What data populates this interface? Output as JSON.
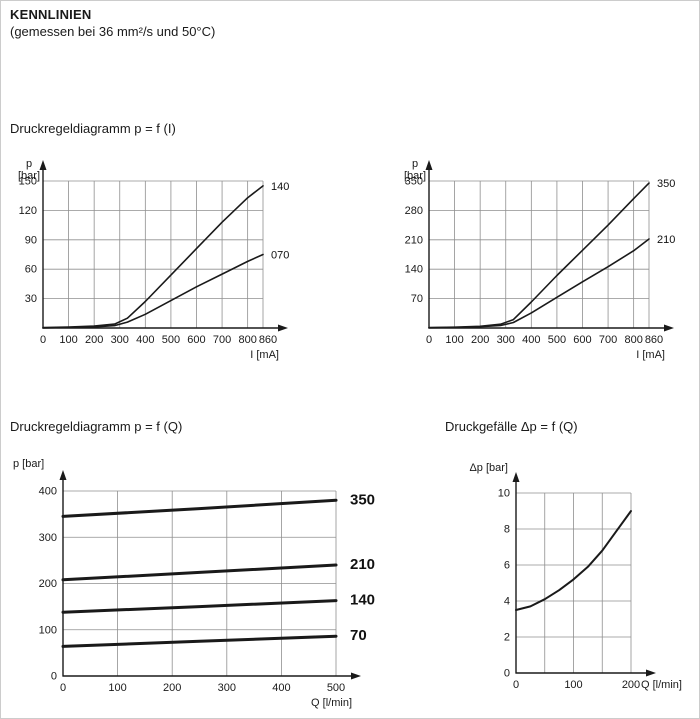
{
  "page": {
    "title": "KENNLINIEN",
    "subtitle": "(gemessen bei 36 mm²/s und 50°C)"
  },
  "chart_data": [
    {
      "id": "pressure-vs-current-150bar",
      "type": "line",
      "title": "Druckregeldiagramm p = f (I)",
      "ylabel_lines": [
        "p",
        "[bar]"
      ],
      "xlabel": "I [mA]",
      "xlim": [
        0,
        860
      ],
      "ylim": [
        0,
        150
      ],
      "xticks": [
        0,
        100,
        200,
        300,
        400,
        500,
        600,
        700,
        800,
        860
      ],
      "yticks": [
        30,
        60,
        90,
        120,
        150
      ],
      "grid": true,
      "legend": "curve labels at right end",
      "series": [
        {
          "name": "140",
          "points": [
            [
              0,
              0.5
            ],
            [
              100,
              1
            ],
            [
              200,
              2
            ],
            [
              280,
              4
            ],
            [
              330,
              10
            ],
            [
              400,
              27
            ],
            [
              500,
              54
            ],
            [
              600,
              81
            ],
            [
              700,
              108
            ],
            [
              800,
              133
            ],
            [
              860,
              145
            ]
          ]
        },
        {
          "name": "070",
          "points": [
            [
              0,
              0
            ],
            [
              100,
              0.5
            ],
            [
              200,
              1
            ],
            [
              280,
              2.5
            ],
            [
              330,
              6
            ],
            [
              400,
              14
            ],
            [
              500,
              28
            ],
            [
              600,
              42
            ],
            [
              700,
              55
            ],
            [
              800,
              68
            ],
            [
              860,
              75
            ]
          ]
        }
      ]
    },
    {
      "id": "pressure-vs-current-350bar",
      "type": "line",
      "title": "Druckregeldiagramm p = f (I)",
      "ylabel_lines": [
        "p",
        "[bar]"
      ],
      "xlabel": "I [mA]",
      "xlim": [
        0,
        860
      ],
      "ylim": [
        0,
        350
      ],
      "xticks": [
        0,
        100,
        200,
        300,
        400,
        500,
        600,
        700,
        800,
        860
      ],
      "yticks": [
        70,
        140,
        210,
        280,
        350
      ],
      "grid": true,
      "legend": "curve labels at right end",
      "series": [
        {
          "name": "350",
          "points": [
            [
              0,
              1
            ],
            [
              100,
              2
            ],
            [
              200,
              4
            ],
            [
              280,
              9
            ],
            [
              330,
              20
            ],
            [
              400,
              62
            ],
            [
              500,
              125
            ],
            [
              600,
              185
            ],
            [
              700,
              245
            ],
            [
              800,
              308
            ],
            [
              860,
              345
            ]
          ]
        },
        {
          "name": "210",
          "points": [
            [
              0,
              0.5
            ],
            [
              100,
              1
            ],
            [
              200,
              3
            ],
            [
              280,
              6
            ],
            [
              330,
              13
            ],
            [
              400,
              36
            ],
            [
              500,
              73
            ],
            [
              600,
              110
            ],
            [
              700,
              146
            ],
            [
              800,
              184
            ],
            [
              860,
              212
            ]
          ]
        }
      ]
    },
    {
      "id": "pressure-vs-flow",
      "type": "line",
      "title": "Druckregeldiagramm p = f (Q)",
      "ylabel_lines": [
        "p [bar]"
      ],
      "xlabel": "Q [l/min]",
      "xlim": [
        0,
        500
      ],
      "ylim": [
        0,
        400
      ],
      "xticks": [
        0,
        100,
        200,
        300,
        400,
        500
      ],
      "yticks": [
        0,
        100,
        200,
        300,
        400
      ],
      "grid": true,
      "legend": "curve labels at right end",
      "series": [
        {
          "name": "350",
          "points": [
            [
              0,
              345
            ],
            [
              250,
              362
            ],
            [
              500,
              380
            ]
          ]
        },
        {
          "name": "210",
          "points": [
            [
              0,
              208
            ],
            [
              250,
              224
            ],
            [
              500,
              240
            ]
          ]
        },
        {
          "name": "140",
          "points": [
            [
              0,
              138
            ],
            [
              250,
              150
            ],
            [
              500,
              163
            ]
          ]
        },
        {
          "name": "70",
          "points": [
            [
              0,
              64
            ],
            [
              250,
              75
            ],
            [
              500,
              86
            ]
          ]
        }
      ]
    },
    {
      "id": "pressure-drop-vs-flow",
      "type": "line",
      "title": "Druckgefälle Δp = f (Q)",
      "ylabel_lines": [
        "Δp [bar]"
      ],
      "xlabel": "Q [l/min]",
      "xlim": [
        0,
        200
      ],
      "ylim": [
        0,
        10
      ],
      "xticks": [
        0,
        100,
        200
      ],
      "yticks": [
        0,
        2,
        4,
        6,
        8,
        10
      ],
      "xgrid": [
        50,
        100,
        150,
        200
      ],
      "grid": true,
      "legend": "none",
      "series": [
        {
          "name": "",
          "points": [
            [
              0,
              3.5
            ],
            [
              25,
              3.7
            ],
            [
              50,
              4.1
            ],
            [
              75,
              4.6
            ],
            [
              100,
              5.2
            ],
            [
              125,
              5.9
            ],
            [
              150,
              6.8
            ],
            [
              175,
              7.9
            ],
            [
              200,
              9.0
            ]
          ]
        }
      ]
    }
  ]
}
